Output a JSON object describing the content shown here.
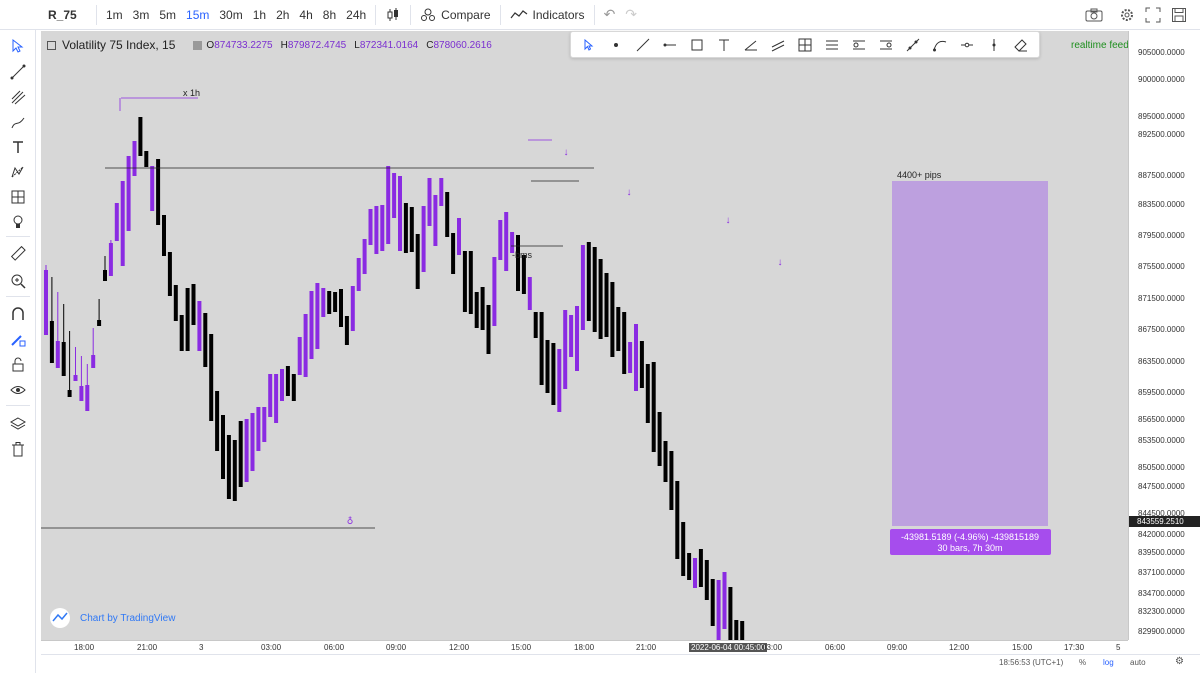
{
  "header": {
    "symbol": "R_75",
    "intervals": [
      "1m",
      "3m",
      "5m",
      "15m",
      "30m",
      "1h",
      "2h",
      "4h",
      "8h",
      "24h"
    ],
    "active_interval": "15m",
    "compare_label": "Compare",
    "indicators_label": "Indicators"
  },
  "legend": {
    "title": "Volatility 75 Index, 15",
    "open": "874733.2275",
    "high": "879872.4745",
    "low": "872341.0164",
    "close": "878060.2616",
    "open_prefix": "O",
    "high_prefix": "H",
    "low_prefix": "L",
    "close_prefix": "C"
  },
  "realtime_feed": "realtime feed",
  "annotations": {
    "x1h": "x 1h",
    "bms": "-bms",
    "pips": "4400+ pips",
    "measure_line1": "-43981.5189 (-4.96%) -439815189",
    "measure_line2": "30 bars, 7h 30m"
  },
  "watermark": "Chart by TradingView",
  "price_axis": {
    "ticks": [
      "905000.0000",
      "900000.0000",
      "895000.0000",
      "892500.0000",
      "887500.0000",
      "883500.0000",
      "879500.0000",
      "875500.0000",
      "871500.0000",
      "867500.0000",
      "863500.0000",
      "859500.0000",
      "856500.0000",
      "853500.0000",
      "850500.0000",
      "847500.0000",
      "844500.0000",
      "842000.0000",
      "839500.0000",
      "837100.0000",
      "834700.0000",
      "832300.0000",
      "829900.0000"
    ],
    "current_price": "843559.2510"
  },
  "time_axis": {
    "ticks": [
      "18:00",
      "21:00",
      "3",
      "03:00",
      "06:00",
      "09:00",
      "12:00",
      "15:00",
      "18:00",
      "21:00",
      "2022-06-04 00:45:00",
      "03:00",
      "06:00",
      "09:00",
      "12:00",
      "15:00",
      "17:30",
      "5"
    ]
  },
  "status_bar": {
    "clock": "18:56:53 (UTC+1)",
    "percent": "%",
    "log": "log",
    "auto": "auto"
  },
  "colors": {
    "bull": "#8a2be2",
    "bear": "#000000",
    "chart_bg": "#d7d7d7",
    "measure_fill": "#b996e0",
    "accent": "#2962ff",
    "realtime": "#1e8f1e",
    "ohlc": "#7b2fd0"
  }
}
